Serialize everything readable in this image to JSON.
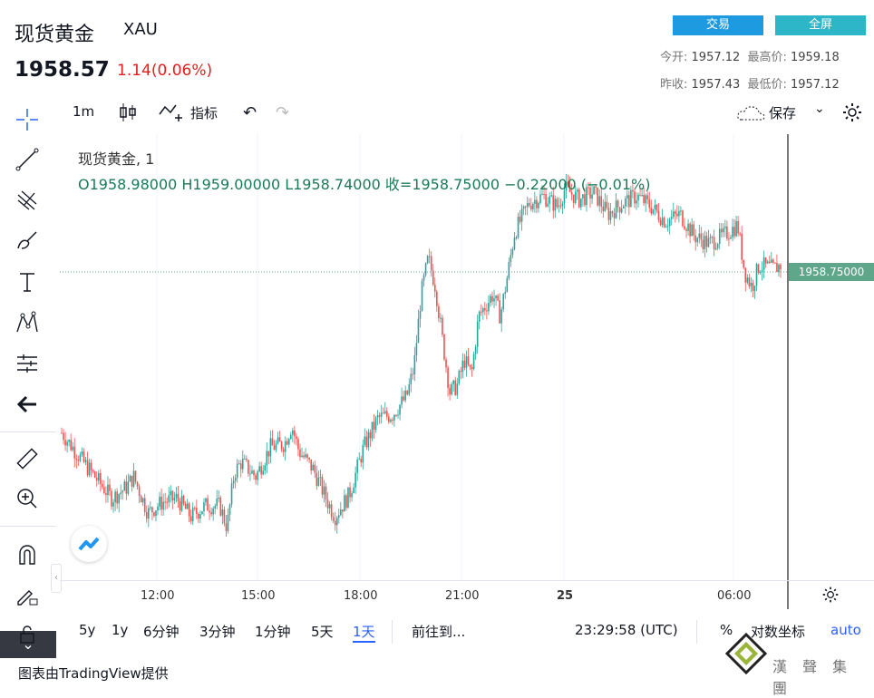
{
  "header": {
    "title": "现货黄金",
    "code": "XAU",
    "price": "1958.57",
    "change": "1.14(0.06%)",
    "trade_btn": "交易",
    "fullscreen_btn": "全屏",
    "stats": {
      "open_label": "今开:",
      "open": "1957.12",
      "high_label": "最高价:",
      "high": "1959.18",
      "prev_label": "昨收:",
      "prev": "1957.43",
      "low_label": "最低价:",
      "low": "1957.12"
    }
  },
  "toolbar": {
    "interval": "1m",
    "indicators": "指标",
    "save": "保存"
  },
  "legend": {
    "symbol": "现货黄金, 1",
    "ohlc": "O1958.98000  H1959.00000  L1958.74000  收=1958.75000  −0.22000 (−0.01%)"
  },
  "chart_data": {
    "type": "candlestick",
    "last_price_label": "1958.75000",
    "x_ticks": [
      "12:00",
      "15:00",
      "18:00",
      "21:00",
      "25",
      "06:00"
    ],
    "series_shape": [
      [
        0,
        0.3
      ],
      [
        3,
        0.22
      ],
      [
        5,
        0.17
      ],
      [
        7,
        0.12
      ],
      [
        9,
        0.15
      ],
      [
        10,
        0.18
      ],
      [
        12,
        0.08
      ],
      [
        14,
        0.11
      ],
      [
        16,
        0.12
      ],
      [
        18,
        0.07
      ],
      [
        20,
        0.1
      ],
      [
        22,
        0.1
      ],
      [
        23,
        0.04
      ],
      [
        24,
        0.19
      ],
      [
        25,
        0.22
      ],
      [
        27,
        0.18
      ],
      [
        29,
        0.26
      ],
      [
        31,
        0.27
      ],
      [
        32,
        0.32
      ],
      [
        33,
        0.25
      ],
      [
        35,
        0.2
      ],
      [
        37,
        0.11
      ],
      [
        38,
        0.07
      ],
      [
        40,
        0.13
      ],
      [
        42,
        0.26
      ],
      [
        44,
        0.34
      ],
      [
        46,
        0.35
      ],
      [
        48,
        0.4
      ],
      [
        49,
        0.48
      ],
      [
        50,
        0.68
      ],
      [
        51,
        0.78
      ],
      [
        52,
        0.7
      ],
      [
        53,
        0.55
      ],
      [
        54,
        0.41
      ],
      [
        55,
        0.43
      ],
      [
        56,
        0.5
      ],
      [
        57,
        0.46
      ],
      [
        58,
        0.62
      ],
      [
        60,
        0.68
      ],
      [
        61,
        0.62
      ],
      [
        62,
        0.73
      ],
      [
        63,
        0.85
      ],
      [
        65,
        0.93
      ],
      [
        67,
        0.95
      ],
      [
        69,
        0.92
      ],
      [
        70,
        0.97
      ],
      [
        72,
        0.94
      ],
      [
        74,
        0.96
      ],
      [
        76,
        0.9
      ],
      [
        78,
        0.93
      ],
      [
        80,
        0.95
      ],
      [
        82,
        0.92
      ],
      [
        84,
        0.88
      ],
      [
        86,
        0.9
      ],
      [
        88,
        0.84
      ],
      [
        90,
        0.82
      ],
      [
        92,
        0.84
      ],
      [
        94,
        0.87
      ],
      [
        95,
        0.74
      ],
      [
        96,
        0.7
      ],
      [
        97,
        0.76
      ],
      [
        99,
        0.75
      ],
      [
        100,
        0.76
      ]
    ]
  },
  "timeframes": [
    "5y",
    "1y",
    "6分钟",
    "3分钟",
    "1分钟",
    "5天",
    "1天"
  ],
  "active_timeframe": "1天",
  "bottom_bar": {
    "goto": "前往到...",
    "clock": "23:29:58 (UTC)",
    "percent": "%",
    "log": "对数坐标",
    "auto": "auto"
  },
  "footer": "图表由TradingView提供",
  "watermark": "漢 聲 集 團",
  "colors": {
    "up": "#26a69a",
    "down": "#ef5350",
    "accent": "#2962ff",
    "price_tag": "#5fa68a"
  }
}
